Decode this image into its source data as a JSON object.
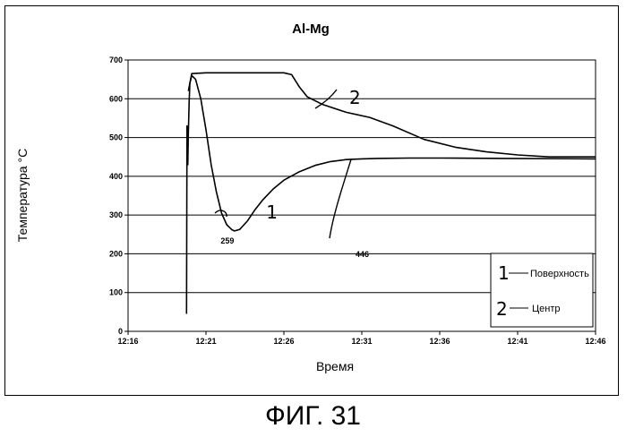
{
  "figure_label": "ФИГ. 31",
  "chart_data": {
    "type": "line",
    "title": "Al-Mg",
    "xlabel": "Время",
    "ylabel": "Температура °C",
    "xlim": [
      "12:16",
      "12:46"
    ],
    "ylim": [
      0,
      700
    ],
    "x_ticks": [
      "12:16",
      "12:21",
      "12:26",
      "12:31",
      "12:36",
      "12:41",
      "12:46"
    ],
    "y_ticks": [
      "0",
      "100",
      "200",
      "300",
      "400",
      "500",
      "600",
      "700"
    ],
    "grid": "horizontal",
    "legend": {
      "placement": "bottom-right",
      "entries": [
        {
          "marker": "1",
          "label": "Поверхность"
        },
        {
          "marker": "2",
          "label": "Центр"
        }
      ]
    },
    "annotations": [
      {
        "text": "259",
        "x": "12:22:50",
        "y": 259
      },
      {
        "text": "446",
        "x": "12:31:50",
        "y": 446
      },
      {
        "text": "1",
        "x": "12:25:00",
        "y": 310
      },
      {
        "text": "2",
        "x": "12:30:20",
        "y": 605
      }
    ],
    "series": [
      {
        "marker": "1",
        "name": "Поверхность",
        "points": [
          [
            "12:19:45",
            45
          ],
          [
            "12:19:47",
            530
          ],
          [
            "12:19:50",
            430
          ],
          [
            "12:19:52",
            510
          ],
          [
            "12:19:55",
            590
          ],
          [
            "12:19:58",
            640
          ],
          [
            "12:20:05",
            660
          ],
          [
            "12:20:20",
            650
          ],
          [
            "12:20:40",
            600
          ],
          [
            "12:21:00",
            520
          ],
          [
            "12:21:20",
            430
          ],
          [
            "12:21:40",
            360
          ],
          [
            "12:22:00",
            305
          ],
          [
            "12:22:20",
            275
          ],
          [
            "12:22:40",
            262
          ],
          [
            "12:22:50",
            259
          ],
          [
            "12:23:10",
            263
          ],
          [
            "12:23:40",
            285
          ],
          [
            "12:24:10",
            315
          ],
          [
            "12:24:40",
            340
          ],
          [
            "12:25:20",
            368
          ],
          [
            "12:26:00",
            390
          ],
          [
            "12:27:00",
            412
          ],
          [
            "12:28:00",
            428
          ],
          [
            "12:29:00",
            438
          ],
          [
            "12:30:00",
            443
          ],
          [
            "12:31:00",
            445
          ],
          [
            "12:32:00",
            446
          ],
          [
            "12:34:00",
            447
          ],
          [
            "12:36:00",
            447
          ],
          [
            "12:40:00",
            446
          ],
          [
            "12:46:00",
            445
          ]
        ]
      },
      {
        "marker": "2",
        "name": "Центр",
        "points": [
          [
            "12:19:52",
            620
          ],
          [
            "12:20:05",
            665
          ],
          [
            "12:21:00",
            667
          ],
          [
            "12:24:00",
            667
          ],
          [
            "12:26:00",
            667
          ],
          [
            "12:26:30",
            662
          ],
          [
            "12:27:00",
            630
          ],
          [
            "12:27:30",
            605
          ],
          [
            "12:28:30",
            585
          ],
          [
            "12:30:00",
            565
          ],
          [
            "12:31:30",
            552
          ],
          [
            "12:33:00",
            530
          ],
          [
            "12:35:00",
            495
          ],
          [
            "12:37:00",
            475
          ],
          [
            "12:39:00",
            463
          ],
          [
            "12:41:00",
            455
          ],
          [
            "12:43:00",
            450
          ],
          [
            "12:46:00",
            450
          ]
        ]
      }
    ]
  }
}
